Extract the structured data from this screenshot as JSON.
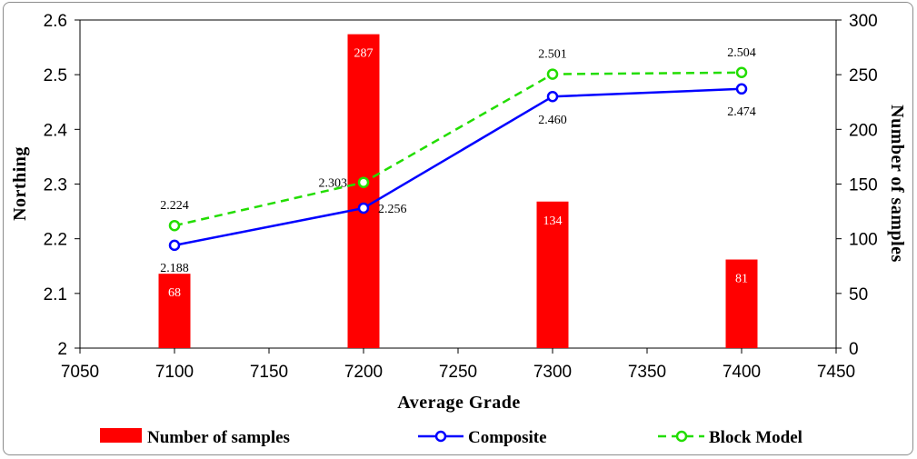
{
  "chart_data": {
    "type": "bar+line",
    "xlabel": "Average Grade",
    "ylabel": "Northing",
    "y2label": "Number of samples",
    "xlim": [
      7050,
      7450
    ],
    "xticks": [
      7050,
      7100,
      7150,
      7200,
      7250,
      7300,
      7350,
      7400,
      7450
    ],
    "ylim": [
      2.0,
      2.6
    ],
    "yticks": [
      "2",
      "2.1",
      "2.2",
      "2.3",
      "2.4",
      "2.5",
      "2.6"
    ],
    "y2lim": [
      0,
      300
    ],
    "y2ticks": [
      0,
      50,
      100,
      150,
      200,
      250,
      300
    ],
    "bars": {
      "name": "Number of samples",
      "axis": "right",
      "color": "#ff0000",
      "x": [
        7100,
        7200,
        7300,
        7400
      ],
      "values": [
        68,
        287,
        134,
        81
      ]
    },
    "series": [
      {
        "name": "Composite",
        "axis": "left",
        "color": "#0000ff",
        "style": "solid",
        "x": [
          7100,
          7200,
          7300,
          7400
        ],
        "values": [
          2.188,
          2.256,
          2.46,
          2.474
        ],
        "labels": [
          "2.188",
          "2.256",
          "2.460",
          "2.474"
        ]
      },
      {
        "name": "Block Model",
        "axis": "left",
        "color": "#22dd00",
        "style": "dashed",
        "x": [
          7100,
          7200,
          7300,
          7400
        ],
        "values": [
          2.224,
          2.303,
          2.501,
          2.504
        ],
        "labels": [
          "2.224",
          "2.303",
          "2.501",
          "2.504"
        ]
      }
    ],
    "legend": {
      "position": "bottom",
      "items": [
        "Number of samples",
        "Composite",
        "Block Model"
      ]
    }
  }
}
